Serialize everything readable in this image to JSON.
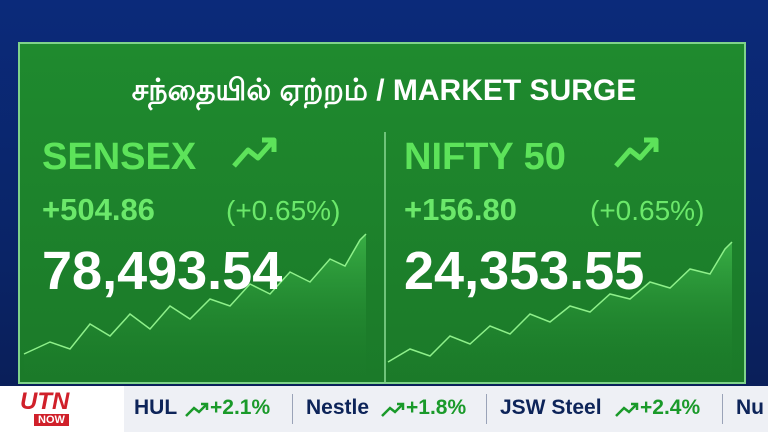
{
  "header": {
    "title": "சந்தையில் ஏற்றம் / MARKET SURGE"
  },
  "panels": [
    {
      "name": "SENSEX",
      "change": "+504.86",
      "change_pct": "(+0.65%)",
      "value": "78,493.54"
    },
    {
      "name": "NIFTY 50",
      "change": "+156.80",
      "change_pct": "(+0.65%)",
      "value": "24,353.55"
    }
  ],
  "ticker": {
    "logo": {
      "top": "UTN",
      "bottom": "NOW"
    },
    "items": [
      {
        "name": "HUL",
        "change": "+2.1%"
      },
      {
        "name": "Nestle",
        "change": "+1.8%"
      },
      {
        "name": "JSW Steel",
        "change": "+2.4%"
      },
      {
        "name": "Nu",
        "change": null
      }
    ]
  }
}
